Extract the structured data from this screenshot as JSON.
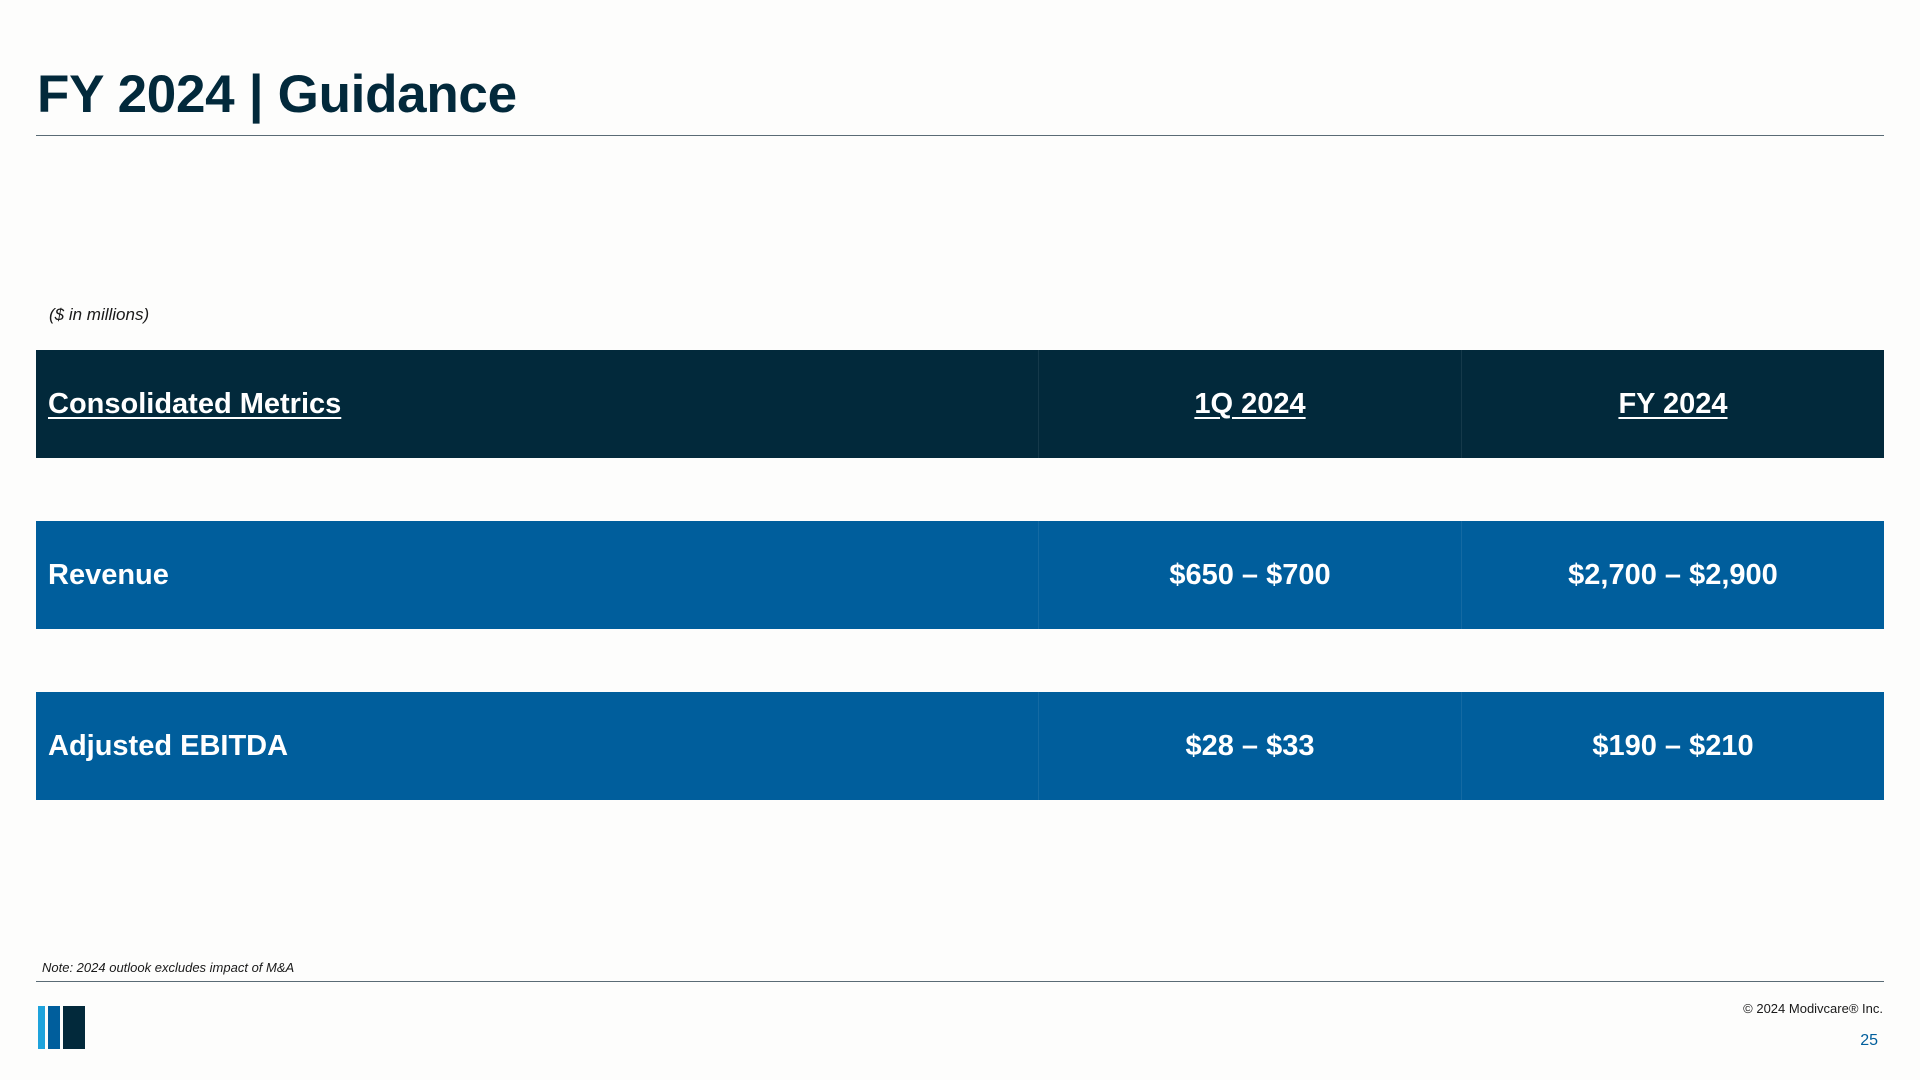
{
  "slide": {
    "title": "FY 2024 | Guidance",
    "units_note": "($ in millions)",
    "footnote": "Note: 2024 outlook excludes impact of M&A",
    "copyright": "© 2024 Modivcare® Inc.",
    "page_number": "25"
  },
  "table": {
    "headers": [
      "Consolidated Metrics",
      "1Q 2024",
      "FY 2024"
    ],
    "rows": [
      {
        "metric": "Revenue",
        "q1_2024": "$650 – $700",
        "fy_2024": "$2,700 – $2,900"
      },
      {
        "metric": "Adjusted EBITDA",
        "q1_2024": "$28 – $33",
        "fy_2024": "$190 – $210"
      }
    ]
  },
  "colors": {
    "header_background": "#02293b",
    "row_background": "#005e9c",
    "title_text": "#02293b",
    "logo_light_blue": "#1ea3dc",
    "logo_mid_blue": "#005e9c",
    "logo_navy": "#02293b"
  },
  "icons": {
    "logo": "modivcare-bars-logo"
  }
}
